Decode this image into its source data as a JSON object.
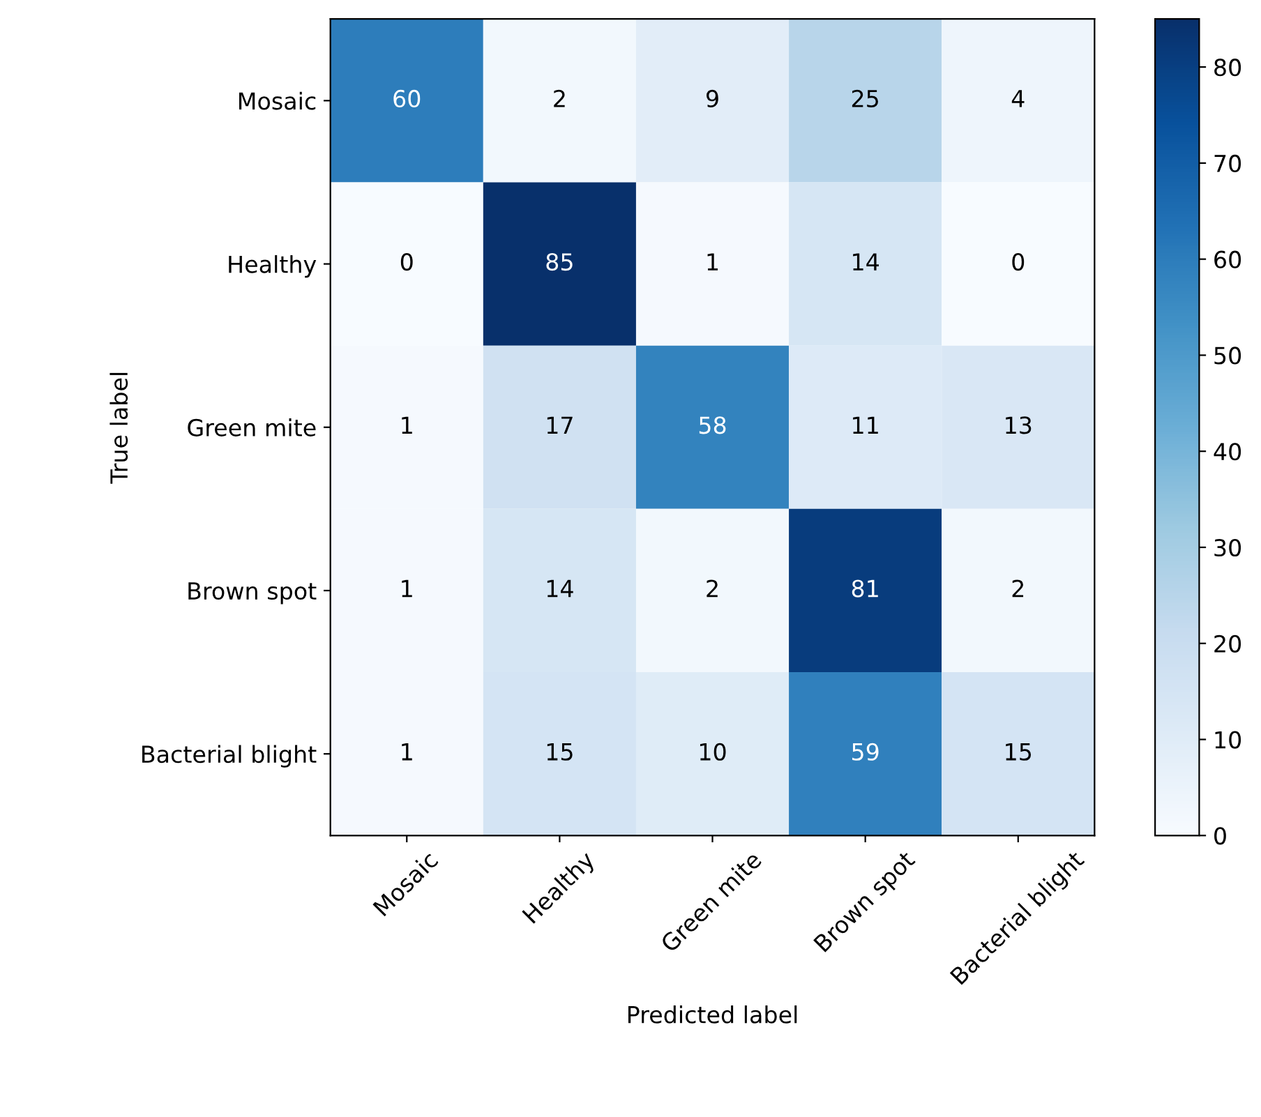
{
  "chart_data": {
    "type": "heatmap",
    "xlabel": "Predicted label",
    "ylabel": "True label",
    "categories": [
      "Mosaic",
      "Healthy",
      "Green mite",
      "Brown spot",
      "Bacterial blight"
    ],
    "y_categories": [
      "Mosaic",
      "Healthy",
      "Green mite",
      "Brown spot",
      "Bacterial blight"
    ],
    "cells": [
      [
        60,
        2,
        9,
        25,
        4
      ],
      [
        0,
        85,
        1,
        14,
        0
      ],
      [
        1,
        17,
        58,
        11,
        13
      ],
      [
        1,
        14,
        2,
        81,
        2
      ],
      [
        1,
        15,
        10,
        59,
        15
      ]
    ],
    "clim": [
      0,
      85
    ],
    "cticks": [
      0,
      10,
      20,
      30,
      40,
      50,
      60,
      70,
      80
    ],
    "data_labels": true
  }
}
